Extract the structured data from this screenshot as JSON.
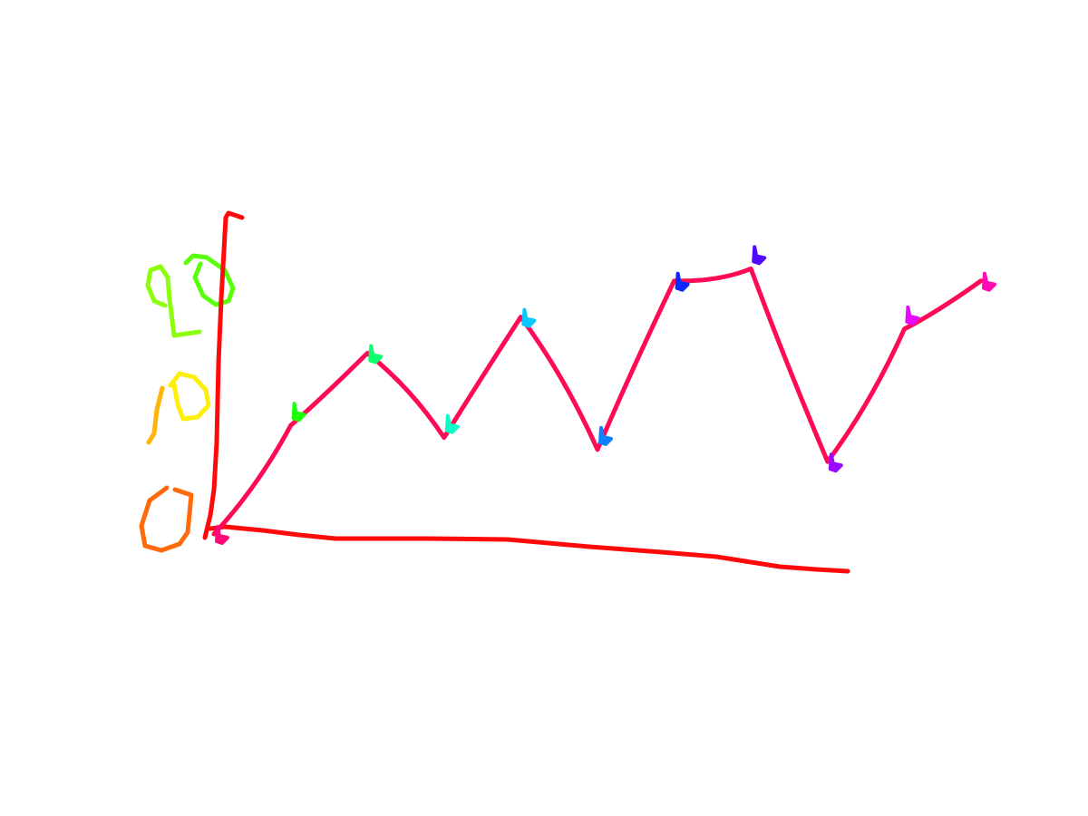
{
  "colors": {
    "axis": "#ff0a0a",
    "series": "#ff0a55",
    "tick_0": "#ff6a0a",
    "tick_10": [
      "#ffb40a",
      "#ffee0a"
    ],
    "tick_20": [
      "#8cff0a",
      "#5aff0a"
    ],
    "markers": [
      "#ff0a78",
      "#1eff0a",
      "#0aff6e",
      "#0affc8",
      "#0ac8ff",
      "#0a82ff",
      "#0a28ff",
      "#500aff",
      "#9a0aff",
      "#e60aff",
      "#ff0ab4"
    ]
  },
  "chart_data": {
    "type": "line",
    "title": "",
    "xlabel": "",
    "ylabel": "",
    "ylim": [
      0,
      26
    ],
    "yticks": [
      {
        "label": "0",
        "value": 0
      },
      {
        "label": "10",
        "value": 10
      },
      {
        "label": "20",
        "value": 20
      }
    ],
    "grid": false,
    "x": [
      0,
      1,
      2,
      3,
      4,
      5,
      6,
      7,
      8,
      9,
      10
    ],
    "series": [
      {
        "values": [
          0,
          9,
          15,
          8,
          18,
          7,
          21,
          22,
          6,
          17,
          21
        ]
      }
    ]
  }
}
